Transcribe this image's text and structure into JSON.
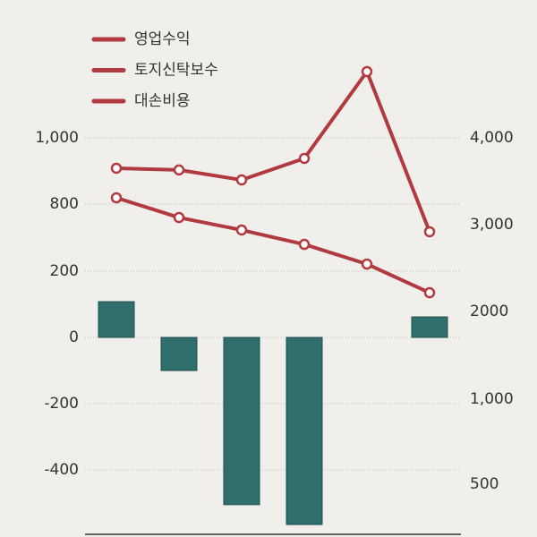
{
  "chart_data": {
    "type": "combo",
    "categories": [
      null,
      null,
      null,
      null,
      null,
      null
    ],
    "series": [
      {
        "name": "영업수익",
        "type": "line",
        "axis": "y2",
        "color": "#b13a40",
        "values": [
          3650,
          3630,
          3515,
          3763,
          4763,
          2918
        ]
      },
      {
        "name": "토지신탁보수",
        "type": "line",
        "axis": "y2",
        "color": "#b13a40",
        "values": [
          3309,
          3082,
          2938,
          2773,
          2546,
          2216
        ]
      },
      {
        "name": "대손비용",
        "type": "bar",
        "color": "#2f6e6c",
        "values": [
          108,
          -100,
          -505,
          -565,
          null,
          62
        ]
      }
    ],
    "legend_color": "#b13a40",
    "yticks": [
      -400,
      -200,
      0,
      200,
      800,
      {
        "value": 1000,
        "label": "1,000"
      }
    ],
    "y2ticks": [
      500,
      {
        "value": 1000,
        "label": "1,000"
      },
      2000,
      {
        "value": 3000,
        "label": "3,000"
      },
      {
        "value": 4000,
        "label": "4,000"
      }
    ],
    "grid": true
  }
}
